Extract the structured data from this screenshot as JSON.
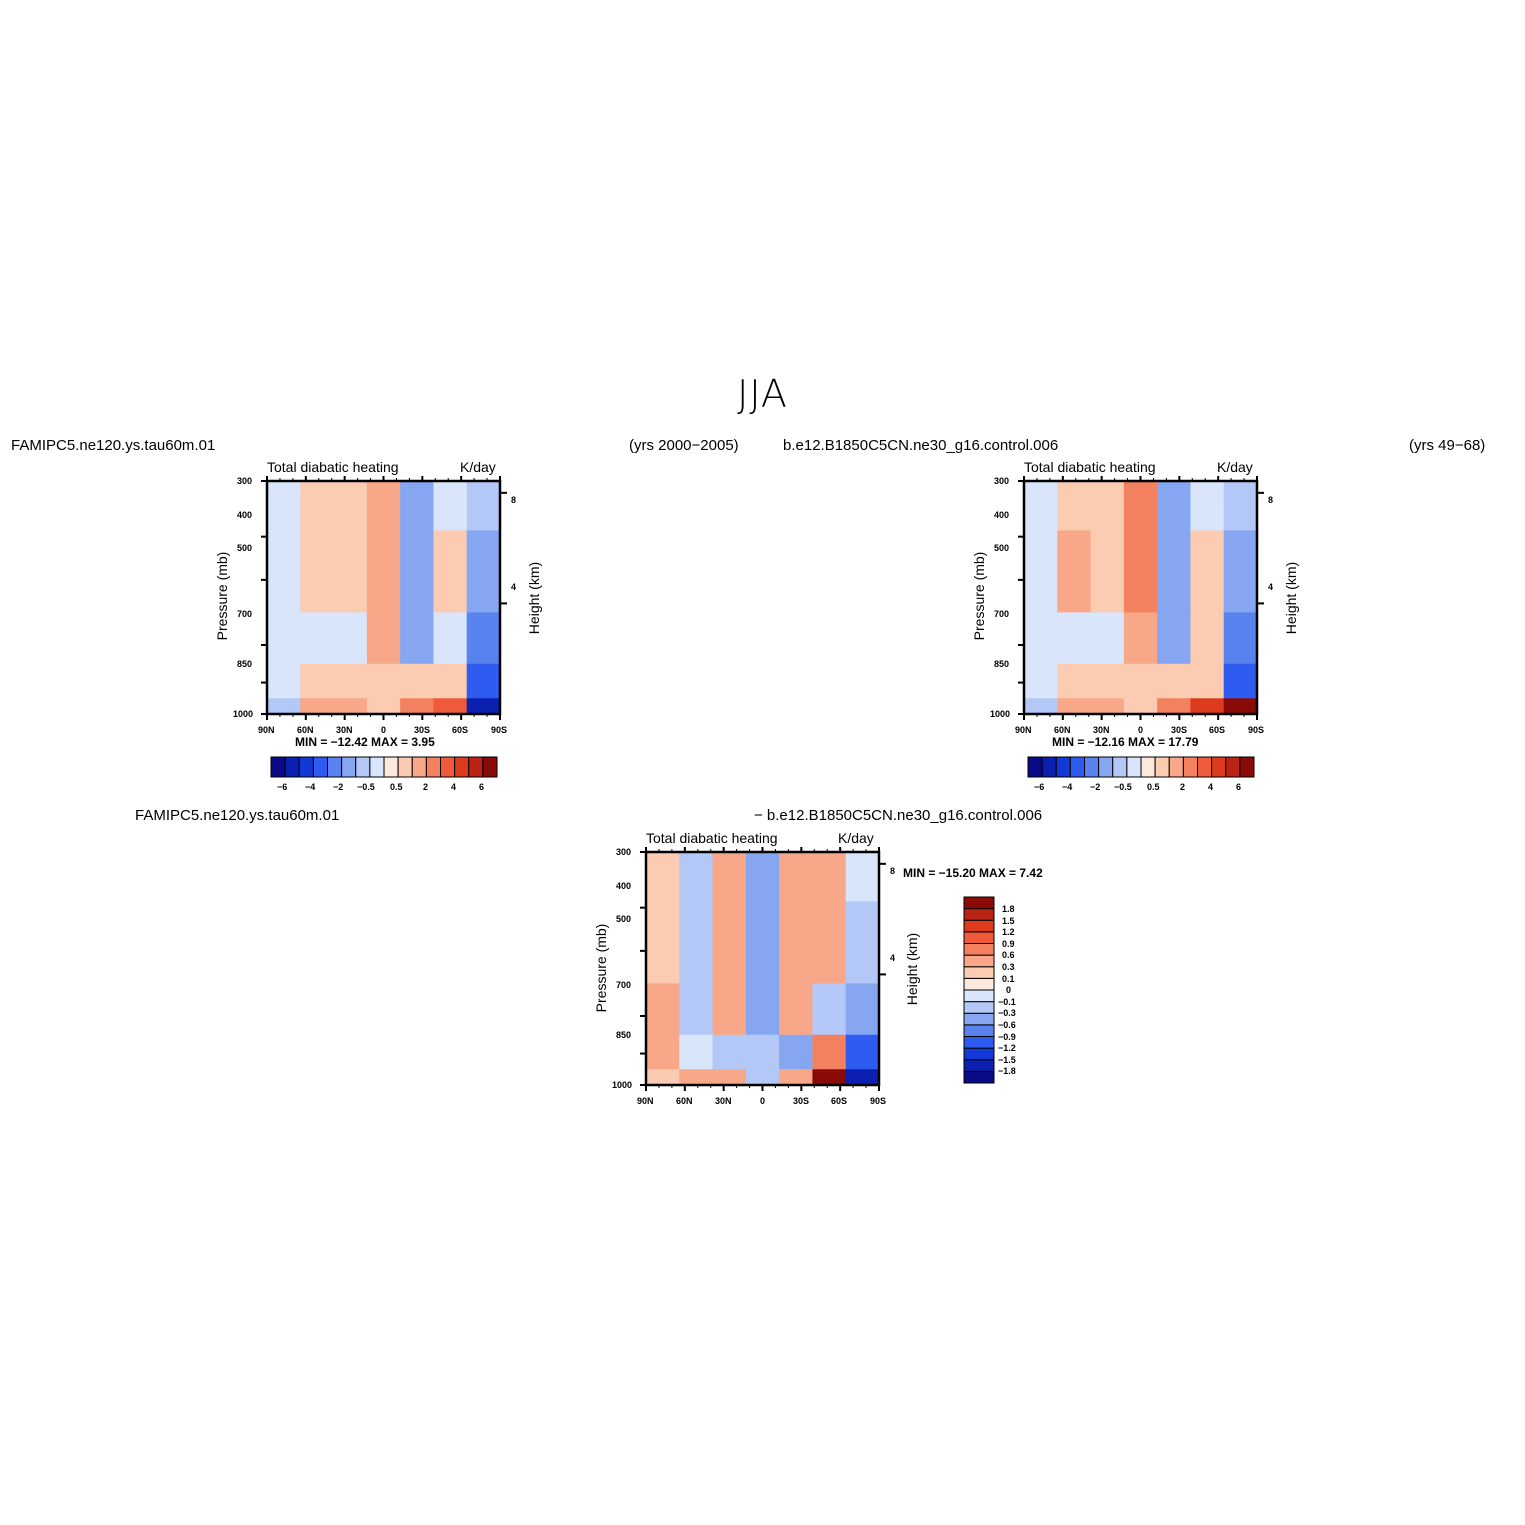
{
  "figure": {
    "title": "JJA",
    "colors": {
      "blues_dark_to_light": [
        "#0a0a86",
        "#0b20b0",
        "#1238d8",
        "#2f5cf0",
        "#5a82ee",
        "#86a6f2",
        "#b3c8f7",
        "#d8e5fb"
      ],
      "reds_light_to_dark": [
        "#fde9dc",
        "#fbcbb2",
        "#f8a888",
        "#f3815f",
        "#ee5a3a",
        "#dd3a1e",
        "#bb2414",
        "#8a0a06"
      ]
    }
  },
  "panels": [
    {
      "id": "left",
      "case_name": "FAMIPC5.ne120.ys.tau60m.01",
      "years": "(yrs 2000−2005)",
      "plot_title": "Total diabatic heating",
      "units": "K/day",
      "min_max": "MIN = −12.42   MAX =    3.95",
      "y_axis_label": "Pressure (mb)",
      "right_axis_label": "Height (km)",
      "pressure_ticks": [
        "300",
        "400",
        "500",
        "700",
        "850",
        "1000"
      ],
      "height_ticks": [
        "8",
        "4"
      ],
      "lat_ticks": [
        "90N",
        "60N",
        "30N",
        "0",
        "30S",
        "60S",
        "90S"
      ],
      "colorbar_labels": [
        "−6",
        "−4",
        "−2",
        "−0.5",
        "0.5",
        "2",
        "4",
        "6"
      ]
    },
    {
      "id": "right",
      "case_name": "b.e12.B1850C5CN.ne30_g16.control.006",
      "years": "(yrs 49−68)",
      "plot_title": "Total diabatic heating",
      "units": "K/day",
      "min_max": "MIN = −12.16   MAX =   17.79",
      "y_axis_label": "Pressure (mb)",
      "right_axis_label": "Height (km)",
      "pressure_ticks": [
        "300",
        "400",
        "500",
        "700",
        "850",
        "1000"
      ],
      "height_ticks": [
        "8",
        "4"
      ],
      "lat_ticks": [
        "90N",
        "60N",
        "30N",
        "0",
        "30S",
        "60S",
        "90S"
      ],
      "colorbar_labels": [
        "−6",
        "−4",
        "−2",
        "−0.5",
        "0.5",
        "2",
        "4",
        "6"
      ]
    },
    {
      "id": "diff",
      "case_name": "FAMIPC5.ne120.ys.tau60m.01",
      "case_name_2": "− b.e12.B1850C5CN.ne30_g16.control.006",
      "plot_title": "Total diabatic heating",
      "units": "K/day",
      "min_max": "MIN = −15.20   MAX =    7.42",
      "y_axis_label": "Pressure (mb)",
      "right_axis_label": "Height (km)",
      "pressure_ticks": [
        "300",
        "400",
        "500",
        "700",
        "850",
        "1000"
      ],
      "height_ticks": [
        "8",
        "4"
      ],
      "lat_ticks": [
        "90N",
        "60N",
        "30N",
        "0",
        "30S",
        "60S",
        "90S"
      ],
      "colorbar_labels": [
        "1.8",
        "1.5",
        "1.2",
        "0.9",
        "0.6",
        "0.3",
        "0.1",
        "0",
        "−0.1",
        "−0.3",
        "−0.6",
        "−0.9",
        "−1.2",
        "−1.5",
        "−1.8"
      ]
    }
  ],
  "chart_data": [
    {
      "type": "heatmap",
      "title": "Total diabatic heating",
      "units": "K/day",
      "xlabel": "",
      "ylabel": "Pressure (mb)",
      "y2label": "Height (km)",
      "x_ticks": [
        "90N",
        "60N",
        "30N",
        "0",
        "30S",
        "60S",
        "90S"
      ],
      "y_ticks": [
        300,
        400,
        500,
        700,
        850,
        1000
      ],
      "y2_ticks": [
        8,
        4
      ],
      "ylim": [
        1000,
        300
      ],
      "min": -12.42,
      "max": 3.95,
      "levels": [
        -6,
        -5,
        -4,
        -3,
        -2,
        -1,
        -0.5,
        0,
        0.5,
        1,
        2,
        3,
        4,
        5,
        6
      ],
      "x": [
        "90N",
        "60N",
        "30N",
        "0",
        "30S",
        "60S",
        "90S"
      ],
      "y": [
        300,
        500,
        700,
        850,
        1000
      ],
      "z": [
        [
          -0.5,
          0.5,
          0.5,
          1,
          -2,
          -0.5,
          -1
        ],
        [
          -0.5,
          0.5,
          0.5,
          1,
          -2,
          0.5,
          -2
        ],
        [
          -0.5,
          -0.5,
          -0.5,
          1,
          -2,
          -0.5,
          -3
        ],
        [
          -0.5,
          0.5,
          0.5,
          0.5,
          0.5,
          0.5,
          -4
        ],
        [
          -1,
          1,
          1,
          0.5,
          2,
          3,
          -6
        ]
      ]
    },
    {
      "type": "heatmap",
      "title": "Total diabatic heating",
      "units": "K/day",
      "xlabel": "",
      "ylabel": "Pressure (mb)",
      "y2label": "Height (km)",
      "x_ticks": [
        "90N",
        "60N",
        "30N",
        "0",
        "30S",
        "60S",
        "90S"
      ],
      "y_ticks": [
        300,
        400,
        500,
        700,
        850,
        1000
      ],
      "y2_ticks": [
        8,
        4
      ],
      "ylim": [
        1000,
        300
      ],
      "min": -12.16,
      "max": 17.79,
      "levels": [
        -6,
        -5,
        -4,
        -3,
        -2,
        -1,
        -0.5,
        0,
        0.5,
        1,
        2,
        3,
        4,
        5,
        6
      ],
      "x": [
        "90N",
        "60N",
        "30N",
        "0",
        "30S",
        "60S",
        "90S"
      ],
      "y": [
        300,
        500,
        700,
        850,
        1000
      ],
      "z": [
        [
          -0.5,
          0.5,
          0.5,
          2,
          -2,
          -0.5,
          -1
        ],
        [
          -0.5,
          1,
          0.5,
          2,
          -2,
          0.5,
          -2
        ],
        [
          -0.5,
          -0.5,
          -0.5,
          1,
          -2,
          0.5,
          -3
        ],
        [
          -0.5,
          0.5,
          0.5,
          0.5,
          0.5,
          0.5,
          -4
        ],
        [
          -1,
          1,
          1,
          0.5,
          2,
          4,
          6
        ]
      ]
    },
    {
      "type": "heatmap",
      "title": "Total diabatic heating",
      "units": "K/day",
      "xlabel": "",
      "ylabel": "Pressure (mb)",
      "y2label": "Height (km)",
      "x_ticks": [
        "90N",
        "60N",
        "30N",
        "0",
        "30S",
        "60S",
        "90S"
      ],
      "y_ticks": [
        300,
        400,
        500,
        700,
        850,
        1000
      ],
      "y2_ticks": [
        8,
        4
      ],
      "ylim": [
        1000,
        300
      ],
      "min": -15.2,
      "max": 7.42,
      "levels": [
        -1.8,
        -1.5,
        -1.2,
        -0.9,
        -0.6,
        -0.3,
        -0.1,
        0,
        0.1,
        0.3,
        0.6,
        0.9,
        1.2,
        1.5,
        1.8
      ],
      "x": [
        "90N",
        "60N",
        "30N",
        "0",
        "30S",
        "60S",
        "90S"
      ],
      "y": [
        300,
        500,
        700,
        850,
        1000
      ],
      "z": [
        [
          0.1,
          -0.3,
          0.3,
          -0.6,
          0.3,
          0.3,
          -0.1
        ],
        [
          0.1,
          -0.3,
          0.3,
          -0.6,
          0.3,
          0.3,
          -0.3
        ],
        [
          0.3,
          -0.3,
          0.3,
          -0.6,
          0.3,
          -0.3,
          -0.6
        ],
        [
          0.3,
          -0.1,
          -0.3,
          -0.3,
          -0.6,
          0.6,
          -1.2
        ],
        [
          0.1,
          0.3,
          0.3,
          -0.3,
          0.3,
          1.8,
          -1.8
        ]
      ]
    }
  ]
}
